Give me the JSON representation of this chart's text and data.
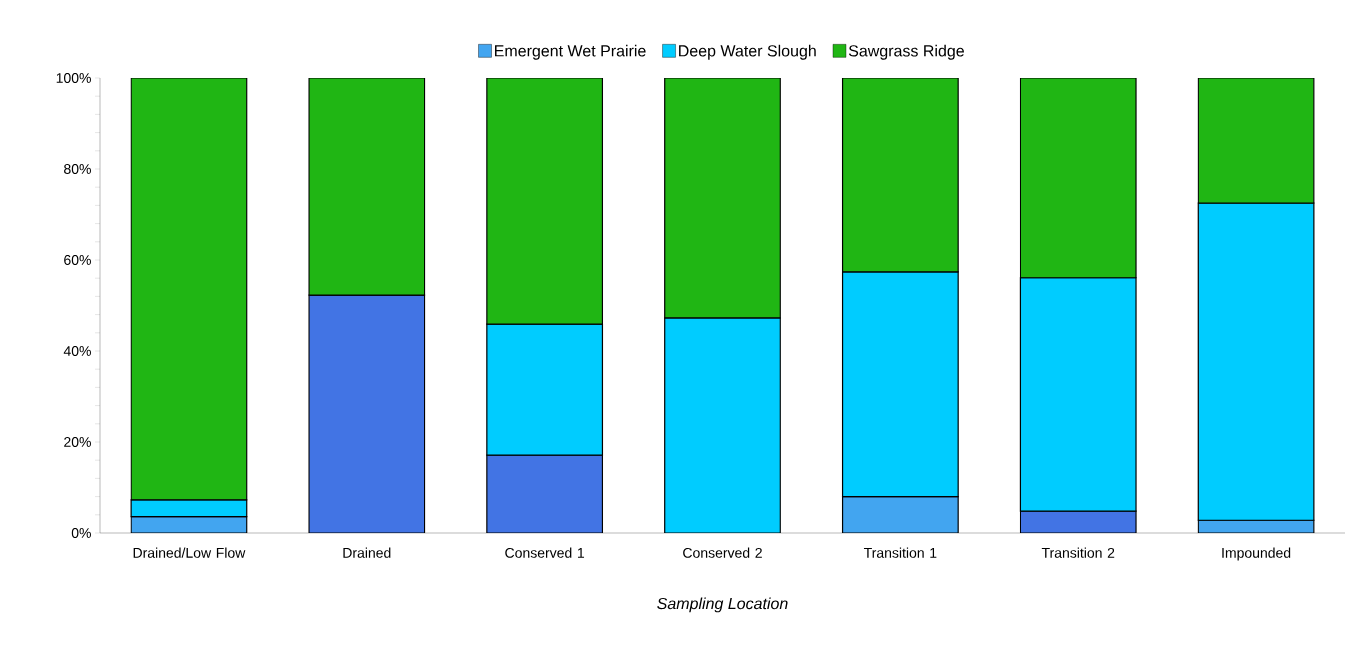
{
  "chart_data": {
    "type": "bar",
    "stacked": true,
    "xlabel": "Sampling Location",
    "categories": [
      "Drained/Low Flow",
      "Drained",
      "Conserved 1",
      "Conserved 2",
      "Transition 1",
      "Transition 2",
      "Impounded"
    ],
    "series": [
      {
        "name": "Emergent Wet Prairie",
        "color": "#42a5f0",
        "colors": [
          "#42a5f0",
          "#4274e4",
          "#4274e4",
          "#4274e4",
          "#42a5f0",
          "#4274e4",
          "#42a5f0"
        ],
        "values": [
          3.6,
          52.3,
          17.1,
          null,
          8.0,
          4.8,
          2.8
        ]
      },
      {
        "name": "Deep Water Slough",
        "color": "#00ccff",
        "values": [
          3.7,
          null,
          28.8,
          47.3,
          49.4,
          51.3,
          69.7
        ]
      },
      {
        "name": "Sawgrass Ridge",
        "color": "#20b614",
        "values": [
          92.7,
          47.7,
          54.1,
          52.7,
          42.6,
          43.9,
          27.5
        ]
      }
    ],
    "ylim": [
      0,
      100
    ],
    "yticks": [
      {
        "value": 0,
        "label": "0%"
      },
      {
        "value": 4,
        "label": null
      },
      {
        "value": 8,
        "label": null
      },
      {
        "value": 12,
        "label": null
      },
      {
        "value": 16,
        "label": null
      },
      {
        "value": 20,
        "label": "20%"
      },
      {
        "value": 24,
        "label": null
      },
      {
        "value": 28,
        "label": null
      },
      {
        "value": 32,
        "label": null
      },
      {
        "value": 36,
        "label": null
      },
      {
        "value": 40,
        "label": "40%"
      },
      {
        "value": 44,
        "label": null
      },
      {
        "value": 48,
        "label": null
      },
      {
        "value": 52,
        "label": null
      },
      {
        "value": 56,
        "label": null
      },
      {
        "value": 60,
        "label": "60%"
      },
      {
        "value": 64,
        "label": null
      },
      {
        "value": 68,
        "label": null
      },
      {
        "value": 72,
        "label": null
      },
      {
        "value": 76,
        "label": null
      },
      {
        "value": 80,
        "label": "80%"
      },
      {
        "value": 84,
        "label": null
      },
      {
        "value": 88,
        "label": null
      },
      {
        "value": 92,
        "label": null
      },
      {
        "value": 96,
        "label": null
      },
      {
        "value": 100,
        "label": "100%"
      }
    ],
    "grid": false,
    "legend": "top"
  }
}
